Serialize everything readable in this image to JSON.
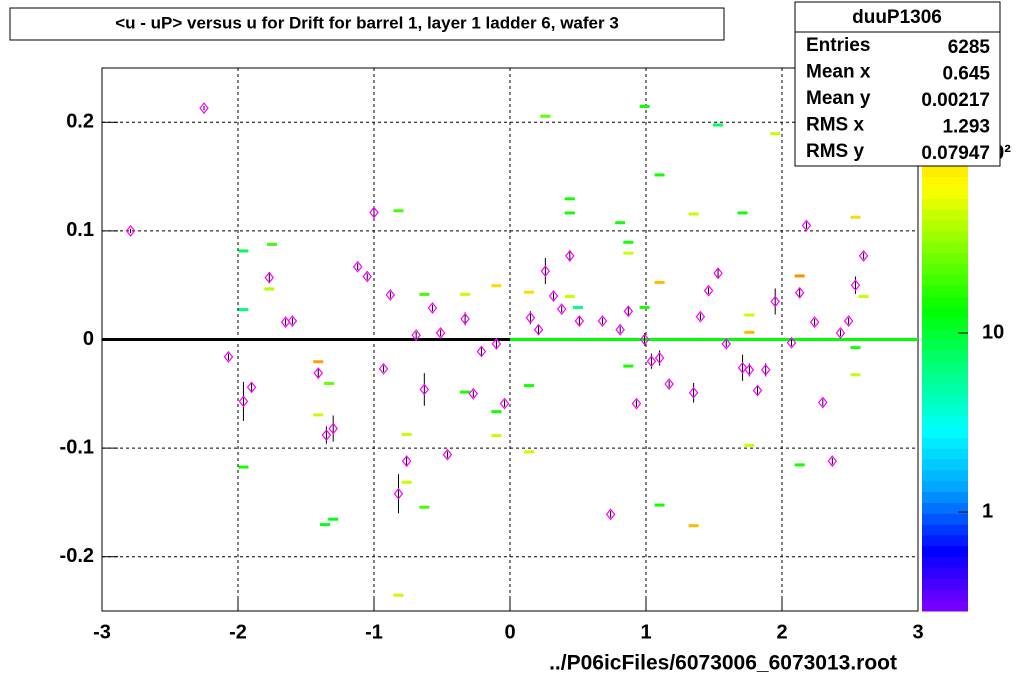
{
  "chart_data": {
    "type": "profile2d",
    "title": "<u - uP>       versus   u for Drift for barrel 1, layer 1 ladder 6, wafer 3",
    "x_label": "../P06icFiles/6073006_6073013.root",
    "xlim": [
      -3,
      3
    ],
    "ylim": [
      -0.25,
      0.25
    ],
    "xticks": [
      -3,
      -2,
      -1,
      0,
      1,
      2,
      3
    ],
    "yticks": [
      -0.2,
      -0.1,
      0,
      0.1,
      0.2
    ],
    "grid": true,
    "zlim": [
      0.28,
      302
    ],
    "zlog": true,
    "zticks": [
      1,
      10,
      {
        "value": 100,
        "label": "10²"
      }
    ],
    "palette": [
      "#8000ff",
      "#0000ff",
      "#00a0ff",
      "#00ffff",
      "#00ff80",
      "#00ff00",
      "#80ff00",
      "#ffff00",
      "#ffc000",
      "#ff8000"
    ],
    "stats": {
      "name": "duuP1306",
      "rows": [
        [
          "Entries",
          "6285"
        ],
        [
          "Mean x",
          "0.645"
        ],
        [
          "Mean y",
          "0.00217"
        ],
        [
          "RMS x",
          "1.293"
        ],
        [
          "RMS y",
          "0.07947"
        ]
      ]
    },
    "profile": {
      "name": "profile",
      "color": "#ff00ff",
      "x": [
        -2.79,
        -2.25,
        -2.07,
        -1.96,
        -1.9,
        -1.77,
        -1.65,
        -1.6,
        -1.41,
        -1.35,
        -1.3,
        -1.12,
        -1.05,
        -1.0,
        -0.93,
        -0.88,
        -0.82,
        -0.76,
        -0.69,
        -0.63,
        -0.57,
        -0.51,
        -0.46,
        -0.33,
        -0.27,
        -0.21,
        -0.1,
        -0.04,
        0.15,
        0.21,
        0.26,
        0.32,
        0.38,
        0.44,
        0.51,
        0.68,
        0.74,
        0.81,
        0.87,
        0.93,
        0.99,
        1.04,
        1.1,
        1.17,
        1.35,
        1.4,
        1.46,
        1.53,
        1.59,
        1.71,
        1.76,
        1.82,
        1.88,
        1.95,
        2.07,
        2.13,
        2.18,
        2.24,
        2.3,
        2.37,
        2.43,
        2.49,
        2.54,
        2.6
      ],
      "values": [
        0.1,
        0.213,
        -0.016,
        -0.057,
        -0.044,
        0.057,
        0.016,
        0.017,
        -0.031,
        -0.088,
        -0.082,
        0.067,
        0.058,
        0.117,
        -0.027,
        0.041,
        -0.142,
        -0.112,
        0.004,
        -0.046,
        0.029,
        0.006,
        -0.106,
        0.019,
        -0.05,
        -0.011,
        -0.004,
        -0.059,
        0.02,
        0.009,
        0.063,
        0.04,
        0.028,
        0.077,
        0.017,
        0.017,
        -0.161,
        0.009,
        0.026,
        -0.059,
        0.0,
        -0.02,
        -0.017,
        -0.041,
        -0.049,
        0.021,
        0.045,
        0.061,
        -0.004,
        -0.026,
        -0.028,
        -0.047,
        -0.028,
        0.035,
        -0.003,
        0.043,
        0.105,
        0.016,
        -0.058,
        -0.112,
        0.006,
        0.017,
        0.05,
        0.077
      ],
      "errors": [
        0.002,
        0.002,
        0.003,
        0.018,
        0.004,
        0.005,
        0.003,
        0.003,
        0.004,
        0.008,
        0.012,
        0.003,
        0.003,
        0.004,
        0.003,
        0.003,
        0.018,
        0.005,
        0.003,
        0.015,
        0.003,
        0.003,
        0.003,
        0.006,
        0.003,
        0.004,
        0.005,
        0.003,
        0.006,
        0.004,
        0.012,
        0.003,
        0.003,
        0.005,
        0.004,
        0.003,
        0.003,
        0.003,
        0.004,
        0.003,
        0.006,
        0.007,
        0.007,
        0.003,
        0.009,
        0.003,
        0.003,
        0.004,
        0.003,
        0.012,
        0.006,
        0.004,
        0.006,
        0.012,
        0.003,
        0.004,
        0.003,
        0.003,
        0.003,
        0.003,
        0.003,
        0.003,
        0.008,
        0.003
      ]
    },
    "cells": {
      "x": [
        -1.75,
        -1.96,
        -1.96,
        -1.96,
        -1.77,
        -1.41,
        -1.33,
        -1.41,
        -1.36,
        -1.3,
        -0.82,
        -0.82,
        -0.76,
        -0.76,
        -0.63,
        -0.63,
        -0.33,
        -0.33,
        -0.1,
        -0.1,
        -0.1,
        0.14,
        0.14,
        0.14,
        0.26,
        0.44,
        0.44,
        0.44,
        0.5,
        0.81,
        0.87,
        0.87,
        0.87,
        0.99,
        0.99,
        1.1,
        1.1,
        1.1,
        1.35,
        1.35,
        1.53,
        1.71,
        1.76,
        1.76,
        1.76,
        1.95,
        2.13,
        2.13,
        2.54,
        2.54,
        2.54,
        2.6
      ],
      "y": [
        0.088,
        0.082,
        0.028,
        -0.117,
        0.047,
        -0.02,
        -0.04,
        -0.069,
        -0.17,
        -0.165,
        0.119,
        -0.235,
        -0.087,
        -0.131,
        0.042,
        -0.154,
        0.042,
        -0.048,
        0.05,
        -0.066,
        -0.088,
        0.044,
        -0.042,
        -0.103,
        0.206,
        0.13,
        0.117,
        0.04,
        0.03,
        0.108,
        0.09,
        0.08,
        -0.024,
        0.215,
        0.03,
        0.152,
        0.053,
        -0.152,
        0.116,
        -0.171,
        0.198,
        0.117,
        0.023,
        0.007,
        -0.097,
        0.19,
        0.059,
        -0.115,
        0.113,
        -0.007,
        -0.032,
        0.04
      ],
      "z": [
        20,
        8,
        6,
        15,
        40,
        200,
        25,
        45,
        12,
        12,
        20,
        45,
        45,
        45,
        20,
        20,
        45,
        15,
        100,
        15,
        45,
        100,
        15,
        45,
        25,
        15,
        15,
        45,
        6,
        15,
        15,
        45,
        15,
        15,
        15,
        15,
        150,
        15,
        45,
        150,
        8,
        15,
        45,
        150,
        45,
        45,
        250,
        15,
        100,
        15,
        45,
        45
      ]
    }
  }
}
